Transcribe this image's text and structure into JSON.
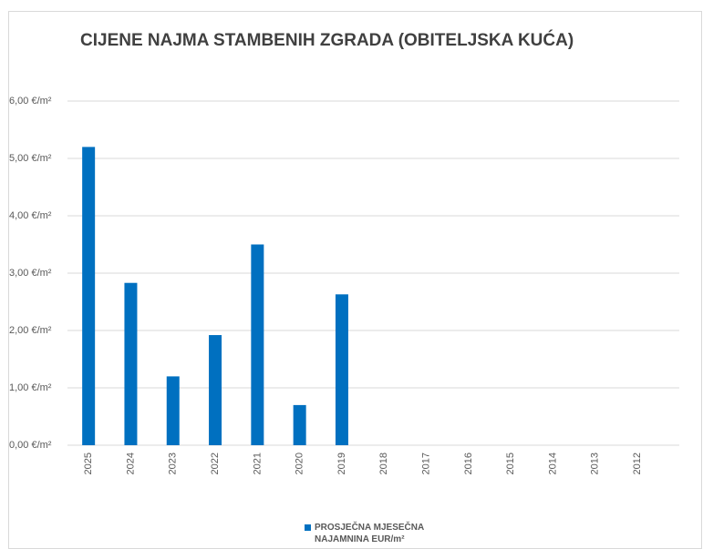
{
  "chart_data": {
    "type": "bar",
    "title": "CIJENE NAJMA STAMBENIH ZGRADA (OBITELJSKA KUĆA)",
    "categories": [
      "2025",
      "2024",
      "2023",
      "2022",
      "2021",
      "2020",
      "2019",
      "2018",
      "2017",
      "2016",
      "2015",
      "2014",
      "2013",
      "2012"
    ],
    "series": [
      {
        "name": "PROSJEČNA MJESEČNA NAJAMNINA EUR/m²",
        "color": "#0070c0",
        "values": [
          5.2,
          2.83,
          1.2,
          1.92,
          3.5,
          0.7,
          2.63,
          null,
          null,
          null,
          null,
          null,
          null,
          null
        ]
      }
    ],
    "ylim": [
      0,
      6
    ],
    "yticks": [
      {
        "value": 0,
        "label": "0,00 €/m²"
      },
      {
        "value": 1,
        "label": "1,00 €/m²"
      },
      {
        "value": 2,
        "label": "2,00 €/m²"
      },
      {
        "value": 3,
        "label": "3,00 €/m²"
      },
      {
        "value": 4,
        "label": "4,00 €/m²"
      },
      {
        "value": 5,
        "label": "5,00 €/m²"
      },
      {
        "value": 6,
        "label": "6,00 €/m²"
      }
    ],
    "grid": true,
    "legend": "bottom"
  }
}
